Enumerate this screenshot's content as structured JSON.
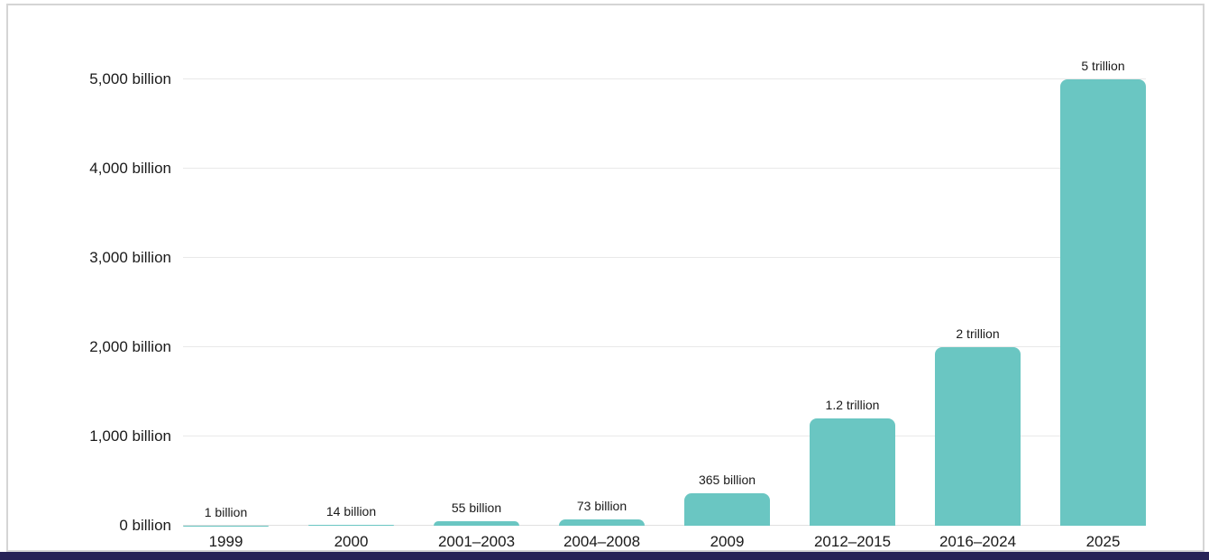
{
  "ui": {
    "colors": {
      "background": "#ffffff",
      "card_border": "#d5d5d5",
      "footer_bar": "#272357",
      "bar_fill": "#6AC6C2",
      "gridline": "#e9e9e9",
      "baseline": "#e0e0e0",
      "text": "#1a1a1a"
    }
  },
  "chart_data": {
    "type": "bar",
    "title": "",
    "xlabel": "",
    "ylabel": "",
    "categories": [
      "1999",
      "2000",
      "2001–2003",
      "2004–2008",
      "2009",
      "2012–2015",
      "2016–2024",
      "2025"
    ],
    "values": [
      1,
      14,
      55,
      73,
      365,
      1200,
      2000,
      5000
    ],
    "bar_labels": [
      "1 billion",
      "14 billion",
      "55 billion",
      "73 billion",
      "365 billion",
      "1.2 trillion",
      "2 trillion",
      "5 trillion"
    ],
    "y_ticks": [
      0,
      1000,
      2000,
      3000,
      4000,
      5000
    ],
    "y_tick_labels": [
      "0 billion",
      "1,000 billion",
      "2,000 billion",
      "3,000 billion",
      "4,000 billion",
      "5,000 billion"
    ],
    "ylim": [
      0,
      5000
    ],
    "unit": "billion",
    "grid": true,
    "legend_position": "none",
    "bar_color": "#6AC6C2"
  }
}
